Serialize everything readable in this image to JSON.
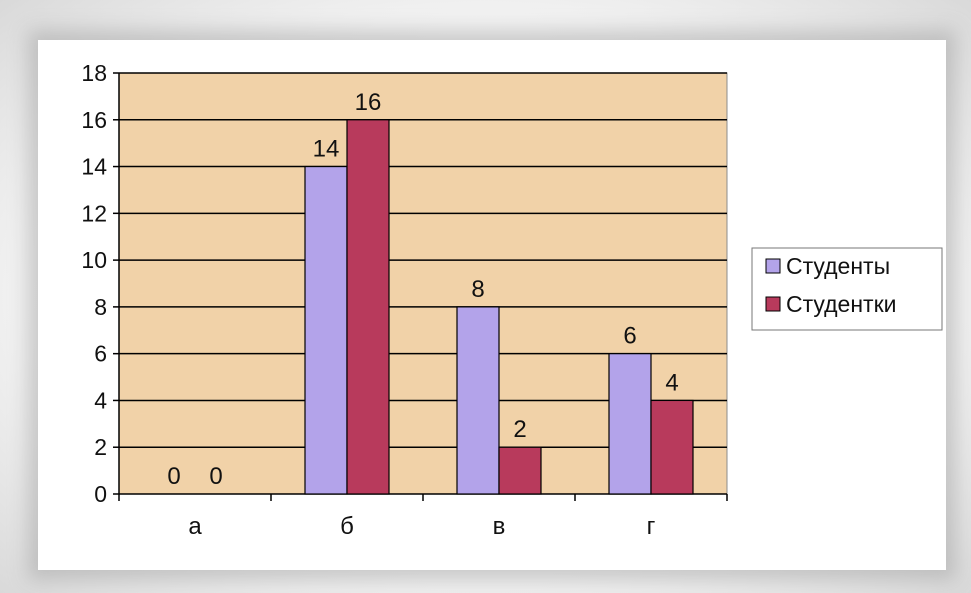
{
  "colors": {
    "plot_bg": "#f1d2a8",
    "students": "#b3a3ea",
    "female_students": "#b83a5c",
    "gridline": "#000000"
  },
  "chart_data": {
    "type": "bar",
    "title": "",
    "xlabel": "",
    "ylabel": "",
    "categories": [
      "а",
      "б",
      "в",
      "г"
    ],
    "series": [
      {
        "name": "Студенты",
        "values": [
          0,
          14,
          8,
          6
        ]
      },
      {
        "name": "Студентки",
        "values": [
          0,
          16,
          2,
          4
        ]
      }
    ],
    "ylim": [
      0,
      18
    ],
    "yticks": [
      0,
      2,
      4,
      6,
      8,
      10,
      12,
      14,
      16,
      18
    ],
    "grid": true,
    "data_labels": true,
    "legend": "right"
  }
}
